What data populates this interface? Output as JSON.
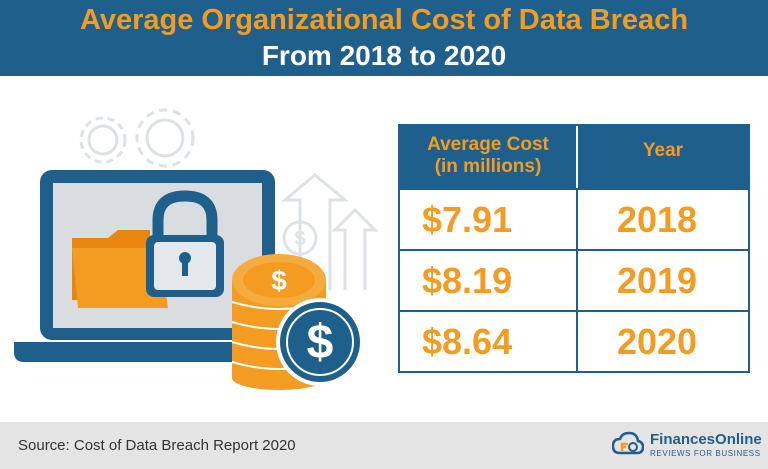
{
  "header": {
    "title": "Average Organizational Cost of Data Breach",
    "subtitle": "From 2018 to 2020"
  },
  "chart_data": {
    "type": "table",
    "title": "Average Organizational Cost of Data Breach",
    "subtitle": "From 2018 to 2020",
    "columns": [
      "Average Cost\n(in millions)",
      "Year"
    ],
    "rows": [
      {
        "cost": "$7.91",
        "year": "2018"
      },
      {
        "cost": "$8.19",
        "year": "2019"
      },
      {
        "cost": "$8.64",
        "year": "2020"
      }
    ],
    "values": [
      7.91,
      8.19,
      8.64
    ],
    "categories": [
      "2018",
      "2019",
      "2020"
    ],
    "unit": "USD millions"
  },
  "table": {
    "col_cost_line1": "Average Cost",
    "col_cost_line2": "(in millions)",
    "col_year": "Year"
  },
  "footer": {
    "source": "Source: Cost of Data Breach Report 2020",
    "brand_name": "FinancesOnline",
    "brand_tagline": "REVIEWS FOR BUSINESS"
  },
  "illustration": {
    "coin_symbol": "$",
    "icons": [
      "gear-icon",
      "laptop-icon",
      "folder-icon",
      "padlock-icon",
      "coin-stack-icon",
      "dollar-coin-icon",
      "upload-arrow-icon"
    ]
  },
  "colors": {
    "primary": "#1f5f8b",
    "accent": "#f39c21",
    "footer_bg": "#e4e4e4"
  }
}
